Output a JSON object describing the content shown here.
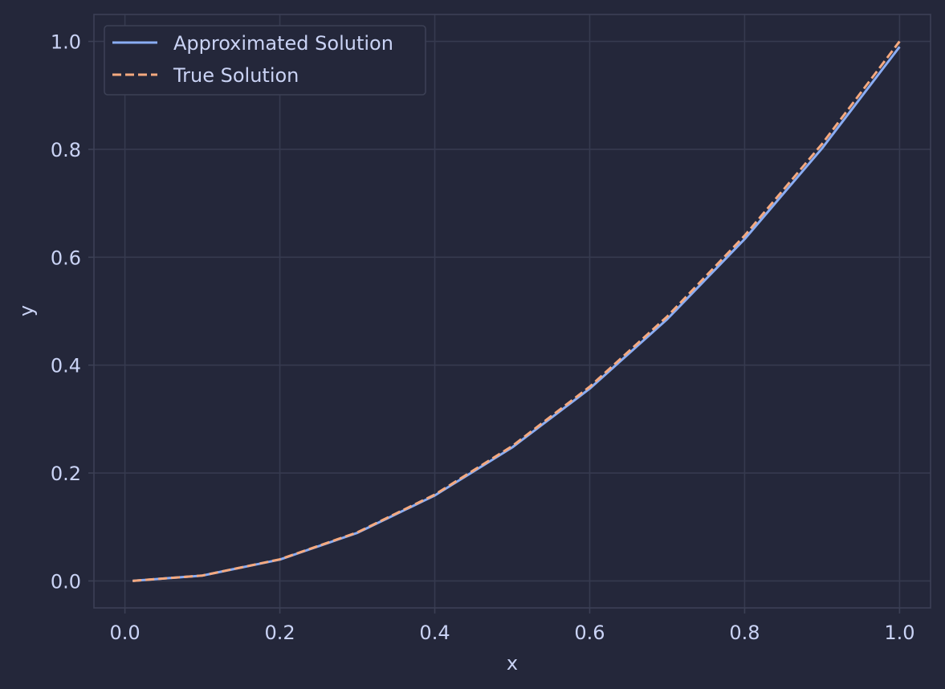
{
  "colors": {
    "background": "#24273a",
    "grid": "#363a4f",
    "text": "#cad3f5",
    "approx_line": "#8aadf4",
    "true_line": "#f5a97f"
  },
  "chart_data": {
    "type": "line",
    "title": "",
    "xlabel": "x",
    "ylabel": "y",
    "xlim": [
      -0.04,
      1.04
    ],
    "ylim": [
      -0.05,
      1.05
    ],
    "xticks": [
      0.0,
      0.2,
      0.4,
      0.6,
      0.8,
      1.0
    ],
    "xtick_labels": [
      "0.0",
      "0.2",
      "0.4",
      "0.6",
      "0.8",
      "1.0"
    ],
    "yticks": [
      0.0,
      0.2,
      0.4,
      0.6,
      0.8,
      1.0
    ],
    "ytick_labels": [
      "0.0",
      "0.2",
      "0.4",
      "0.6",
      "0.8",
      "1.0"
    ],
    "grid": true,
    "legend_position": "upper-left",
    "series": [
      {
        "name": "Approximated Solution",
        "style": "solid",
        "color": "#8aadf4",
        "x": [
          0.01,
          0.1,
          0.2,
          0.3,
          0.4,
          0.5,
          0.6,
          0.7,
          0.8,
          0.9,
          1.0
        ],
        "y": [
          0.0001,
          0.0099,
          0.0396,
          0.0891,
          0.1584,
          0.2475,
          0.3564,
          0.4851,
          0.6336,
          0.8019,
          0.99
        ]
      },
      {
        "name": "True Solution",
        "style": "dashed",
        "color": "#f5a97f",
        "x": [
          0.01,
          0.1,
          0.2,
          0.3,
          0.4,
          0.5,
          0.6,
          0.7,
          0.8,
          0.9,
          1.0
        ],
        "y": [
          0.0001,
          0.01,
          0.04,
          0.09,
          0.16,
          0.25,
          0.36,
          0.49,
          0.64,
          0.81,
          1.0
        ]
      }
    ]
  }
}
